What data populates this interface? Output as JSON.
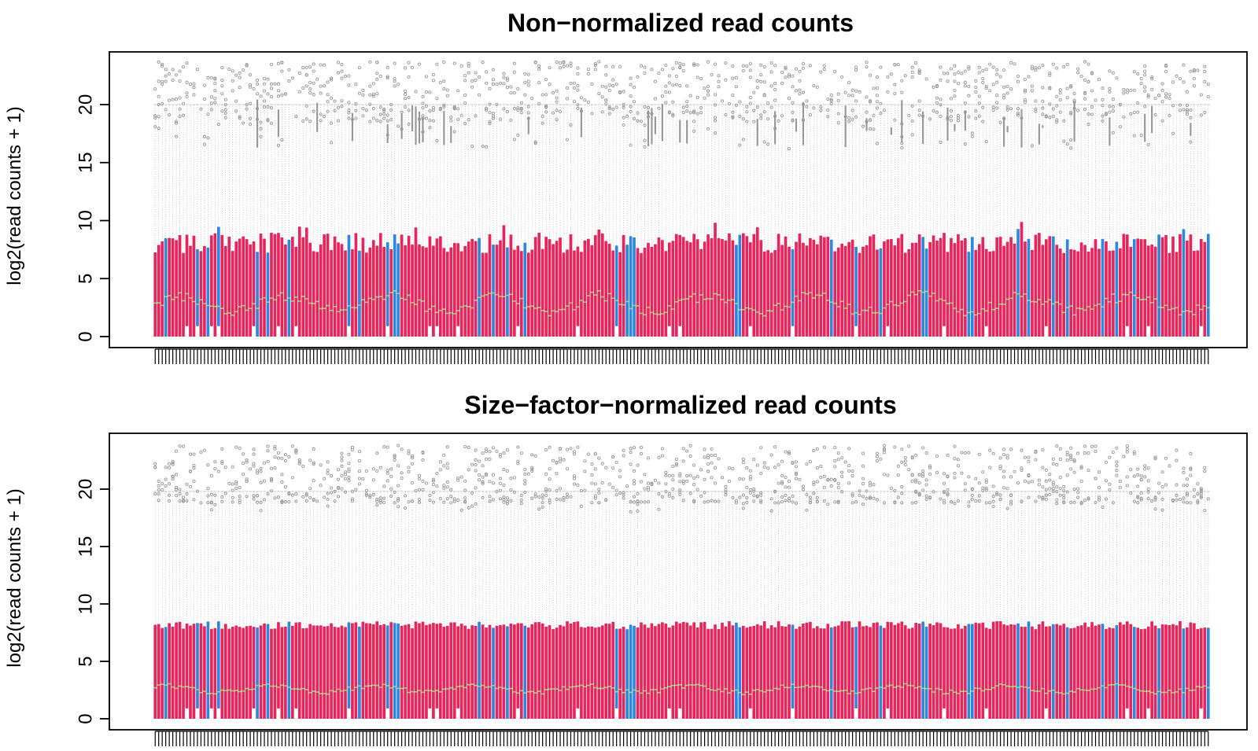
{
  "chart_data": [
    {
      "type": "box",
      "title": "Non−normalized read counts",
      "xlabel": "",
      "ylabel": "log2(read counts + 1)",
      "ylim": [
        0,
        24
      ],
      "yticks": [
        0,
        5,
        10,
        15,
        20
      ],
      "ytick_labels": [
        "0",
        "5",
        "10",
        "15",
        "20"
      ],
      "n_samples": 300,
      "summary": {
        "box_lower": 0,
        "box_upper_range": [
          7.2,
          9.9
        ],
        "median_range": [
          1.5,
          4.5
        ],
        "whisker_upper": 20,
        "outlier_range": [
          16.2,
          23.7
        ]
      },
      "colors": {
        "group_a": "#E8245A",
        "group_b": "#2B87E0",
        "median": "#9BD27A",
        "outlier": "#999999",
        "whisker": "#BBBBBB"
      }
    },
    {
      "type": "box",
      "title": "Size−factor−normalized read counts",
      "xlabel": "",
      "ylabel": "log2(read counts + 1)",
      "ylim": [
        0,
        24
      ],
      "yticks": [
        0,
        5,
        10,
        15,
        20
      ],
      "ytick_labels": [
        "0",
        "5",
        "10",
        "15",
        "20"
      ],
      "n_samples": 300,
      "summary": {
        "box_lower": 0,
        "box_upper_range": [
          7.8,
          8.5
        ],
        "median_range": [
          2.0,
          3.3
        ],
        "whisker_upper": 19.8,
        "outlier_range": [
          18.0,
          23.8
        ]
      },
      "colors": {
        "group_a": "#E8245A",
        "group_b": "#2B87E0",
        "median": "#9BD27A",
        "outlier": "#999999",
        "whisker": "#BBBBBB"
      }
    }
  ]
}
